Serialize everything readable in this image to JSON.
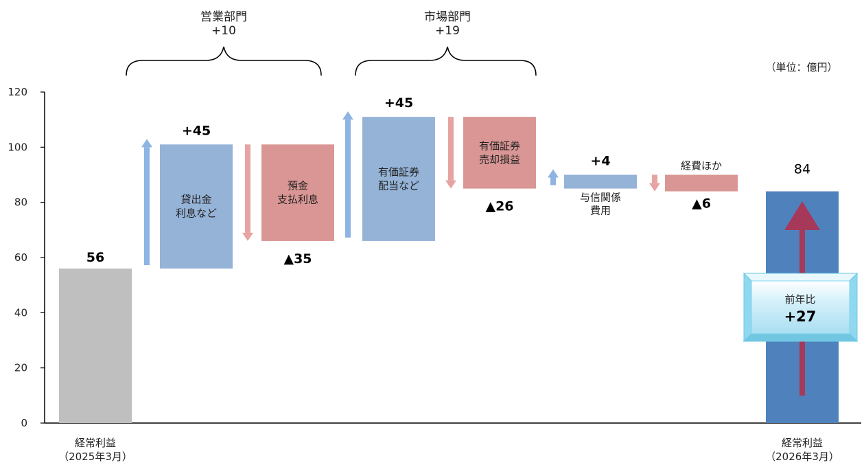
{
  "units_label": "（単位：億円）",
  "segments": [
    {
      "title": "営業部門",
      "total": "+10"
    },
    {
      "title": "市場部門",
      "total": "+19"
    }
  ],
  "yoy": {
    "label": "前年比",
    "value": "+27"
  },
  "colors": {
    "start": "#bfbfbf",
    "increase": "#95b3d7",
    "decrease": "#d99694",
    "end": "#4f81bd",
    "arrow_up": "#8db4e2",
    "arrow_down": "#e6a3a1",
    "big_arrow": "#a6395a",
    "box_face": "#bfe7f5",
    "box_frame": "#7fd3ee"
  },
  "chart_data": {
    "type": "bar",
    "subtype": "waterfall",
    "ylim": [
      0,
      120
    ],
    "yticks": [
      "0",
      "20",
      "40",
      "60",
      "80",
      "100",
      "120"
    ],
    "grid": false,
    "steps": [
      {
        "kind": "total",
        "start": 0,
        "end": 56,
        "labels": [],
        "value_label": "56",
        "category": [
          "経常利益",
          "（2025年3月）"
        ]
      },
      {
        "kind": "increase",
        "start": 56,
        "end": 101,
        "labels": [
          "貸出金",
          "利息など"
        ],
        "value_label": "+45",
        "category": []
      },
      {
        "kind": "decrease",
        "start": 101,
        "end": 66,
        "labels": [
          "預金",
          "支払利息"
        ],
        "value_label": "▲35",
        "category": []
      },
      {
        "kind": "increase",
        "start": 66,
        "end": 111,
        "labels": [
          "有価証券",
          "配当など"
        ],
        "value_label": "+45",
        "category": []
      },
      {
        "kind": "decrease",
        "start": 111,
        "end": 85,
        "labels": [
          "有価証券",
          "売却損益"
        ],
        "value_label": "▲26",
        "category": []
      },
      {
        "kind": "increase",
        "start": 85,
        "end": 90,
        "labels": [
          "与信関係",
          "費用"
        ],
        "value_label": "+4",
        "category": []
      },
      {
        "kind": "decrease",
        "start": 90,
        "end": 84,
        "labels": [
          "経費ほか"
        ],
        "value_label": "▲6",
        "category": []
      },
      {
        "kind": "total",
        "start": 0,
        "end": 84,
        "labels": [],
        "value_label": "84",
        "category": [
          "経常利益",
          "（2026年3月）"
        ]
      }
    ]
  }
}
